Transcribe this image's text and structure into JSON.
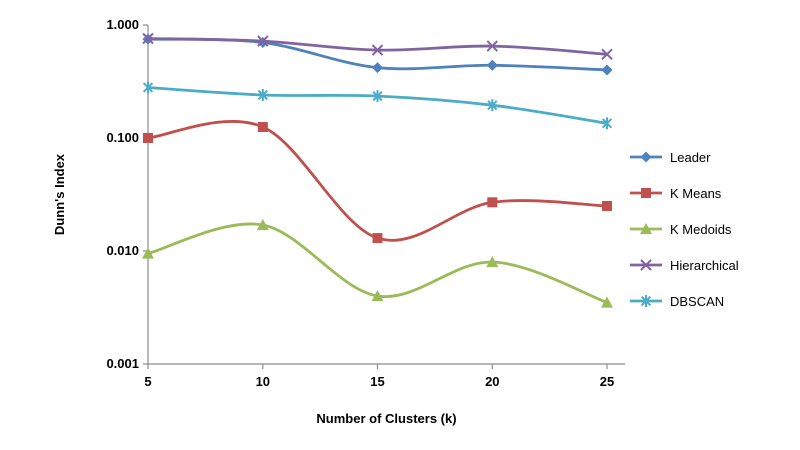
{
  "chart_data": {
    "type": "line",
    "title": "",
    "xlabel": "Number of Clusters (k)",
    "ylabel": "Dunn's Index",
    "x": [
      5,
      10,
      15,
      20,
      25
    ],
    "y_scale": "log",
    "ylim": [
      0.001,
      1.0
    ],
    "yticks": [
      1.0,
      0.1,
      0.01,
      0.001
    ],
    "ytick_labels": [
      "1.000",
      "0.100",
      "0.010",
      "0.001"
    ],
    "xtick_labels": [
      "5",
      "10",
      "15",
      "20",
      "25"
    ],
    "grid": false,
    "legend_position": "right",
    "line_style": "smooth",
    "axis_color": "#8c8c8c",
    "series": [
      {
        "name": "Leader",
        "color": "#4F81BD",
        "marker": "diamond",
        "values": [
          0.75,
          0.7,
          0.42,
          0.44,
          0.4
        ]
      },
      {
        "name": "K Means",
        "color": "#C0504D",
        "marker": "square",
        "values": [
          0.1,
          0.125,
          0.013,
          0.027,
          0.025
        ]
      },
      {
        "name": "K Medoids",
        "color": "#9BBB59",
        "marker": "triangle",
        "values": [
          0.0095,
          0.017,
          0.004,
          0.008,
          0.0035
        ]
      },
      {
        "name": "Hierarchical",
        "color": "#8064A2",
        "marker": "x",
        "values": [
          0.76,
          0.72,
          0.6,
          0.65,
          0.55
        ]
      },
      {
        "name": "DBSCAN",
        "color": "#4BACC6",
        "marker": "star",
        "values": [
          0.28,
          0.24,
          0.235,
          0.195,
          0.135
        ]
      }
    ]
  }
}
